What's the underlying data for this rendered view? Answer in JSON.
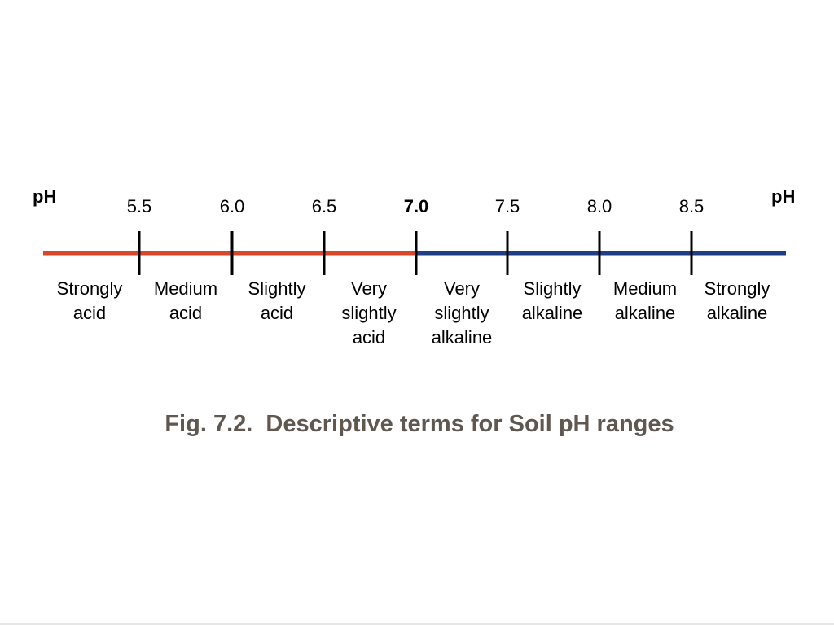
{
  "axis_labels": {
    "left": "pH",
    "right": "pH"
  },
  "ticks": [
    {
      "value": "5.5",
      "bold": false
    },
    {
      "value": "6.0",
      "bold": false
    },
    {
      "value": "6.5",
      "bold": false
    },
    {
      "value": "7.0",
      "bold": true
    },
    {
      "value": "7.5",
      "bold": false
    },
    {
      "value": "8.0",
      "bold": false
    },
    {
      "value": "8.5",
      "bold": false
    }
  ],
  "ranges": [
    {
      "label": "Strongly\nacid"
    },
    {
      "label": "Medium\nacid"
    },
    {
      "label": "Slightly\nacid"
    },
    {
      "label": "Very\nslightly\nacid"
    },
    {
      "label": "Very\nslightly\nalkaline"
    },
    {
      "label": "Slightly\nalkaline"
    },
    {
      "label": "Medium\nalkaline"
    },
    {
      "label": "Strongly\nalkaline"
    }
  ],
  "colors": {
    "acid_line": "#d9472b",
    "alkaline_line": "#1c3f86",
    "tick": "#000000",
    "caption": "#5f5750"
  },
  "caption": "Fig. 7.2.  Descriptive terms for Soil pH ranges"
}
